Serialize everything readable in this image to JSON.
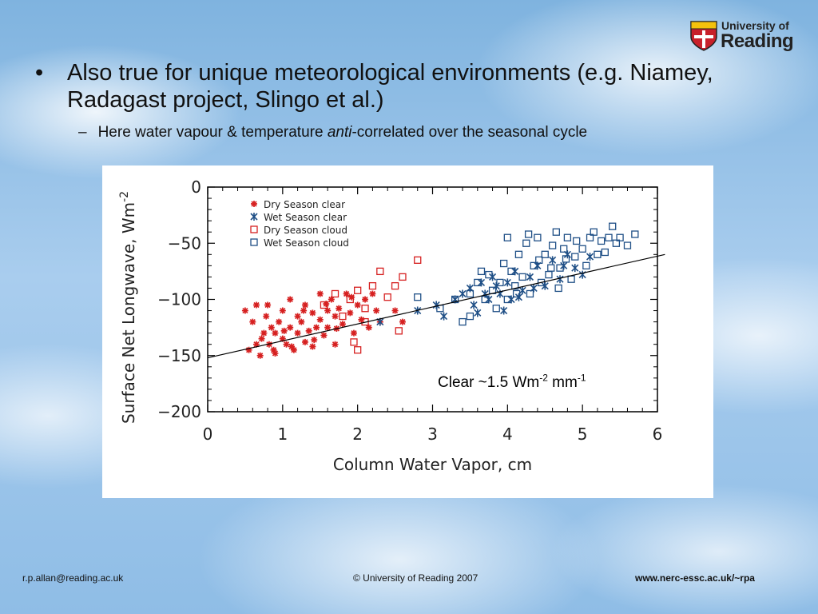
{
  "logo": {
    "line1": "University of",
    "line2": "Reading"
  },
  "bullets": {
    "main": "Also true for unique meteorological environments (e.g. Niamey, Radagast project, Slingo et al.)",
    "sub_pre": "Here water vapour & temperature ",
    "sub_em": "anti",
    "sub_post": "-correlated over the seasonal cycle"
  },
  "annotation": {
    "text": "Clear ~1.5 Wm",
    "sup1": "-2",
    "mid": " mm",
    "sup2": "-1"
  },
  "footer": {
    "email": "r.p.allan@reading.ac.uk",
    "copyright": "© University of Reading 2007",
    "url": "www.nerc-essc.ac.uk/~rpa"
  },
  "colors": {
    "dry": "#d62020",
    "wet": "#1f4f86",
    "axis": "#000000"
  },
  "chart_data": {
    "type": "scatter",
    "xlabel": "Column Water Vapor, cm",
    "ylabel": "Surface Net Longwave, Wm",
    "ylabel_sup": "-2",
    "xlim": [
      0,
      6
    ],
    "ylim": [
      -200,
      0
    ],
    "xticks": [
      "0",
      "1",
      "2",
      "3",
      "4",
      "5",
      "6"
    ],
    "yticks": [
      "0",
      "−50",
      "−100",
      "−150",
      "−200"
    ],
    "legend_position": "top-left",
    "series": [
      {
        "name": "Dry Season clear",
        "marker": "asterisk",
        "color": "#d62020",
        "points": [
          [
            0.5,
            -110
          ],
          [
            0.55,
            -145
          ],
          [
            0.6,
            -120
          ],
          [
            0.65,
            -105
          ],
          [
            0.7,
            -150
          ],
          [
            0.72,
            -135
          ],
          [
            0.75,
            -130
          ],
          [
            0.8,
            -105
          ],
          [
            0.82,
            -140
          ],
          [
            0.85,
            -125
          ],
          [
            0.9,
            -148
          ],
          [
            0.9,
            -130
          ],
          [
            0.95,
            -120
          ],
          [
            1.0,
            -135
          ],
          [
            1.0,
            -110
          ],
          [
            1.05,
            -140
          ],
          [
            1.1,
            -125
          ],
          [
            1.1,
            -100
          ],
          [
            1.15,
            -145
          ],
          [
            1.2,
            -130
          ],
          [
            1.2,
            -115
          ],
          [
            1.25,
            -120
          ],
          [
            1.3,
            -138
          ],
          [
            1.3,
            -105
          ],
          [
            1.35,
            -128
          ],
          [
            1.4,
            -112
          ],
          [
            1.4,
            -142
          ],
          [
            1.45,
            -125
          ],
          [
            1.5,
            -118
          ],
          [
            1.5,
            -95
          ],
          [
            1.55,
            -132
          ],
          [
            1.6,
            -110
          ],
          [
            1.6,
            -125
          ],
          [
            1.65,
            -100
          ],
          [
            1.7,
            -140
          ],
          [
            1.7,
            -115
          ],
          [
            1.75,
            -108
          ],
          [
            1.8,
            -122
          ],
          [
            1.85,
            -95
          ],
          [
            1.9,
            -112
          ],
          [
            1.95,
            -130
          ],
          [
            2.0,
            -105
          ],
          [
            2.05,
            -118
          ],
          [
            2.1,
            -100
          ],
          [
            2.15,
            -125
          ],
          [
            2.2,
            -95
          ],
          [
            2.25,
            -110
          ],
          [
            2.3,
            -120
          ],
          [
            2.5,
            -110
          ],
          [
            2.6,
            -120
          ],
          [
            0.65,
            -140
          ],
          [
            0.78,
            -115
          ],
          [
            0.88,
            -145
          ],
          [
            1.02,
            -128
          ],
          [
            1.12,
            -142
          ],
          [
            1.28,
            -110
          ],
          [
            1.42,
            -136
          ],
          [
            1.58,
            -104
          ],
          [
            1.72,
            -126
          ],
          [
            1.92,
            -98
          ]
        ]
      },
      {
        "name": "Wet Season clear",
        "marker": "x",
        "color": "#1f4f86",
        "points": [
          [
            2.3,
            -120
          ],
          [
            2.8,
            -110
          ],
          [
            3.05,
            -105
          ],
          [
            3.15,
            -115
          ],
          [
            3.3,
            -100
          ],
          [
            3.4,
            -95
          ],
          [
            3.5,
            -90
          ],
          [
            3.6,
            -112
          ],
          [
            3.65,
            -85
          ],
          [
            3.75,
            -100
          ],
          [
            3.8,
            -80
          ],
          [
            3.9,
            -95
          ],
          [
            3.95,
            -110
          ],
          [
            4.0,
            -85
          ],
          [
            4.1,
            -75
          ],
          [
            4.2,
            -92
          ],
          [
            4.3,
            -80
          ],
          [
            4.4,
            -70
          ],
          [
            4.5,
            -88
          ],
          [
            4.6,
            -65
          ],
          [
            4.7,
            -82
          ],
          [
            4.8,
            -60
          ],
          [
            4.9,
            -72
          ],
          [
            5.0,
            -78
          ],
          [
            5.1,
            -62
          ],
          [
            3.7,
            -95
          ],
          [
            4.05,
            -100
          ],
          [
            4.35,
            -90
          ],
          [
            4.75,
            -70
          ],
          [
            3.55,
            -105
          ],
          [
            3.85,
            -88
          ],
          [
            4.15,
            -98
          ]
        ]
      },
      {
        "name": "Dry Season cloud",
        "marker": "square",
        "color": "#d62020",
        "points": [
          [
            1.55,
            -105
          ],
          [
            1.7,
            -95
          ],
          [
            1.8,
            -115
          ],
          [
            1.9,
            -100
          ],
          [
            2.0,
            -92
          ],
          [
            2.1,
            -108
          ],
          [
            2.2,
            -88
          ],
          [
            2.3,
            -75
          ],
          [
            2.4,
            -98
          ],
          [
            2.5,
            -88
          ],
          [
            2.6,
            -80
          ],
          [
            2.8,
            -65
          ],
          [
            2.1,
            -120
          ],
          [
            1.95,
            -138
          ],
          [
            2.0,
            -145
          ],
          [
            2.55,
            -128
          ]
        ]
      },
      {
        "name": "Wet Season cloud",
        "marker": "square",
        "color": "#1f4f86",
        "points": [
          [
            2.8,
            -98
          ],
          [
            3.1,
            -108
          ],
          [
            3.3,
            -100
          ],
          [
            3.4,
            -120
          ],
          [
            3.5,
            -95
          ],
          [
            3.6,
            -85
          ],
          [
            3.7,
            -100
          ],
          [
            3.75,
            -78
          ],
          [
            3.8,
            -92
          ],
          [
            3.9,
            -85
          ],
          [
            3.95,
            -68
          ],
          [
            4.0,
            -100
          ],
          [
            4.0,
            -45
          ],
          [
            4.05,
            -75
          ],
          [
            4.1,
            -88
          ],
          [
            4.15,
            -60
          ],
          [
            4.2,
            -80
          ],
          [
            4.25,
            -50
          ],
          [
            4.3,
            -95
          ],
          [
            4.35,
            -70
          ],
          [
            4.4,
            -45
          ],
          [
            4.45,
            -85
          ],
          [
            4.5,
            -60
          ],
          [
            4.55,
            -78
          ],
          [
            4.6,
            -52
          ],
          [
            4.65,
            -40
          ],
          [
            4.7,
            -72
          ],
          [
            4.75,
            -55
          ],
          [
            4.8,
            -45
          ],
          [
            4.85,
            -82
          ],
          [
            4.9,
            -62
          ],
          [
            5.0,
            -55
          ],
          [
            5.05,
            -70
          ],
          [
            5.1,
            -45
          ],
          [
            5.15,
            -40
          ],
          [
            5.2,
            -60
          ],
          [
            5.25,
            -48
          ],
          [
            5.3,
            -58
          ],
          [
            5.35,
            -45
          ],
          [
            5.4,
            -35
          ],
          [
            5.45,
            -50
          ],
          [
            5.5,
            -45
          ],
          [
            5.6,
            -52
          ],
          [
            5.7,
            -42
          ],
          [
            3.5,
            -115
          ],
          [
            3.65,
            -75
          ],
          [
            4.12,
            -95
          ],
          [
            4.42,
            -65
          ],
          [
            4.68,
            -90
          ],
          [
            4.92,
            -48
          ],
          [
            4.28,
            -42
          ],
          [
            4.58,
            -72
          ],
          [
            3.85,
            -108
          ],
          [
            4.78,
            -64
          ]
        ]
      }
    ],
    "fit_line": {
      "x": [
        0,
        6.1
      ],
      "y": [
        -152,
        -60
      ]
    }
  }
}
